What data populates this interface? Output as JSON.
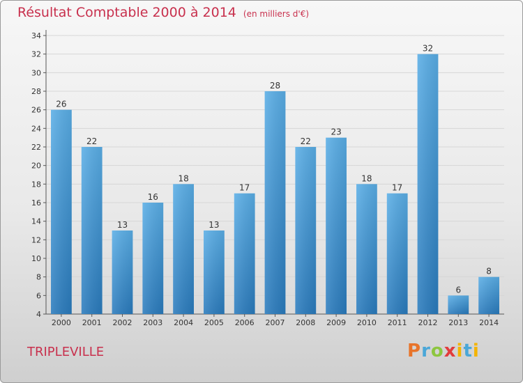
{
  "title": "Résultat Comptable 2000 à 2014",
  "subtitle": "(en milliers d'€)",
  "commune": "TRIPLEVILLE",
  "brand": {
    "text": "Proxiti",
    "colors": [
      "#e8742a",
      "#4aa7d8",
      "#8dc63f",
      "#e23c3c",
      "#f4b400",
      "#4aa7d8",
      "#f4b400"
    ]
  },
  "chart_data": {
    "type": "bar",
    "categories": [
      "2000",
      "2001",
      "2002",
      "2003",
      "2004",
      "2005",
      "2006",
      "2007",
      "2008",
      "2009",
      "2010",
      "2011",
      "2012",
      "2013",
      "2014"
    ],
    "values": [
      26,
      22,
      13,
      16,
      18,
      13,
      17,
      28,
      22,
      23,
      18,
      17,
      32,
      6,
      8
    ],
    "ylim": [
      4,
      34
    ],
    "yticks": [
      4,
      6,
      8,
      10,
      12,
      14,
      16,
      18,
      20,
      22,
      24,
      26,
      28,
      30,
      32,
      34
    ],
    "grid": true,
    "bar_color_top": "#5aaee6",
    "bar_color_bottom": "#2a7bbd",
    "xlabel": "",
    "ylabel": ""
  }
}
